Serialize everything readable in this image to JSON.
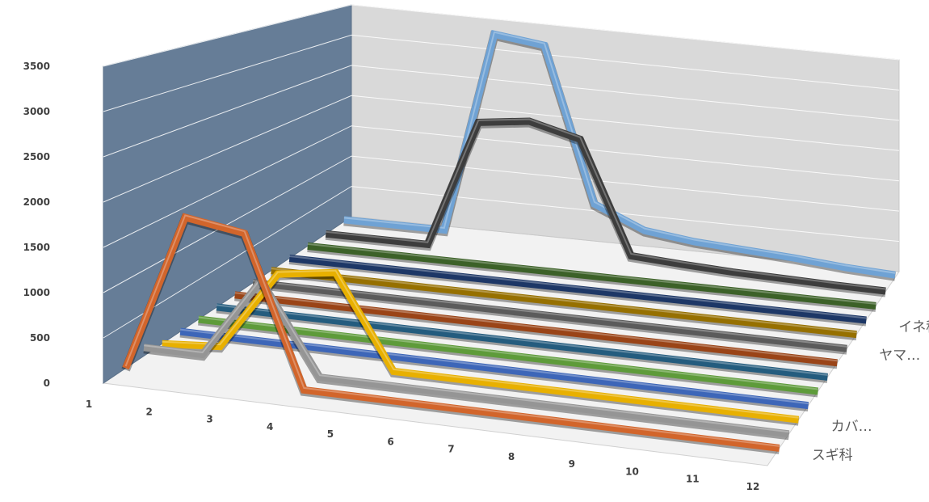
{
  "chart_data": {
    "type": "line",
    "subtype": "3d-line",
    "title": "",
    "xlabel": "",
    "ylabel": "",
    "ylim": [
      0,
      3500
    ],
    "y_ticks": [
      "0",
      "500",
      "1000",
      "1500",
      "2000",
      "2500",
      "3000",
      "3500"
    ],
    "categories": [
      "1",
      "2",
      "3",
      "4",
      "5",
      "6",
      "7",
      "8",
      "9",
      "10",
      "11",
      "12"
    ],
    "depth_labels": [
      {
        "series_index": 0,
        "text": "スギ科"
      },
      {
        "series_index": 2,
        "text": "カバ…"
      },
      {
        "series_index": 7,
        "text": "ヤマ…"
      },
      {
        "series_index": 9,
        "text": "イネ科"
      }
    ],
    "grid": true,
    "series": [
      {
        "color": "#d2652b",
        "values": [
          0,
          1800,
          1700,
          0,
          0,
          0,
          0,
          0,
          0,
          0,
          0,
          0
        ]
      },
      {
        "color": "#959595",
        "values": [
          100,
          100,
          1050,
          0,
          0,
          0,
          0,
          0,
          0,
          0,
          0,
          0
        ]
      },
      {
        "color": "#e8b000",
        "values": [
          0,
          50,
          1000,
          1100,
          0,
          0,
          0,
          0,
          0,
          0,
          0,
          0
        ]
      },
      {
        "color": "#3d66b8",
        "values": [
          0,
          0,
          0,
          0,
          0,
          0,
          0,
          0,
          0,
          0,
          0,
          0
        ]
      },
      {
        "color": "#5e9b3a",
        "values": [
          0,
          0,
          0,
          0,
          0,
          0,
          0,
          0,
          0,
          0,
          0,
          0
        ]
      },
      {
        "color": "#245c7e",
        "values": [
          0,
          0,
          0,
          0,
          0,
          0,
          0,
          0,
          0,
          0,
          0,
          0
        ]
      },
      {
        "color": "#9a4417",
        "values": [
          0,
          0,
          0,
          0,
          0,
          0,
          0,
          0,
          0,
          0,
          0,
          0
        ]
      },
      {
        "color": "#5b5b5b",
        "values": [
          0,
          0,
          0,
          0,
          0,
          0,
          0,
          0,
          0,
          0,
          0,
          0
        ]
      },
      {
        "color": "#967000",
        "values": [
          0,
          0,
          0,
          0,
          0,
          0,
          0,
          0,
          0,
          0,
          0,
          0
        ]
      },
      {
        "color": "#1d3766",
        "values": [
          0,
          0,
          0,
          0,
          0,
          0,
          0,
          0,
          0,
          0,
          0,
          0
        ]
      },
      {
        "color": "#3c6128",
        "values": [
          0,
          0,
          0,
          0,
          0,
          0,
          0,
          0,
          0,
          0,
          0,
          0
        ]
      },
      {
        "color": "#3d3d3d",
        "values": [
          0,
          0,
          0,
          2000,
          2100,
          1900,
          150,
          100,
          60,
          40,
          20,
          10
        ]
      },
      {
        "color": "#6fa2d4",
        "values": [
          30,
          30,
          30,
          3300,
          3200,
          700,
          350,
          250,
          200,
          150,
          80,
          40
        ]
      }
    ]
  },
  "colors": {
    "back_wall": "#d9d9d9",
    "side_wall": "#667d97",
    "floor": "#f2f2f2",
    "gridline": "#ffffff",
    "text": "#404040"
  }
}
